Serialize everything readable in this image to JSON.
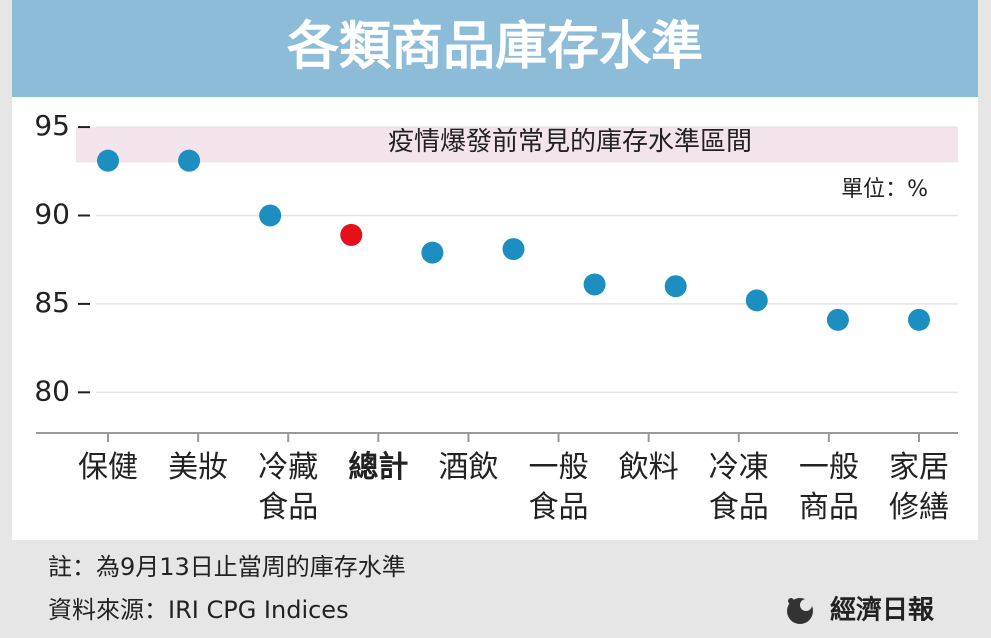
{
  "chart_data": {
    "type": "scatter",
    "title": "各類商品庫存水準",
    "unit": "單位：%",
    "band": {
      "label": "疫情爆發前常見的庫存水準區間",
      "range": [
        93,
        95
      ],
      "color": "#f3e4ec"
    },
    "categories": [
      "保健",
      "美妝",
      "冷藏食品",
      "總計",
      "酒飲",
      "一般食品",
      "飲料",
      "冷凍食品",
      "一般商品",
      "家居修繕",
      null
    ],
    "values": [
      93.1,
      93.1,
      90,
      88.9,
      87.9,
      88.1,
      86.1,
      86.0,
      85.2,
      84.1,
      84.1
    ],
    "colors": [
      "#1d8ec0",
      "#1d8ec0",
      "#1d8ec0",
      "#e60f1c",
      "#1d8ec0",
      "#1d8ec0",
      "#1d8ec0",
      "#1d8ec0",
      "#1d8ec0",
      "#1d8ec0",
      "#1d8ec0"
    ],
    "ylim": [
      77.7,
      96.7
    ],
    "yticks": [
      80,
      85,
      90,
      95
    ],
    "grid": true,
    "note": "註：為9月13日止當周的庫存水準",
    "source": "資料來源：IRI CPG Indices",
    "brand": "經濟日報"
  }
}
